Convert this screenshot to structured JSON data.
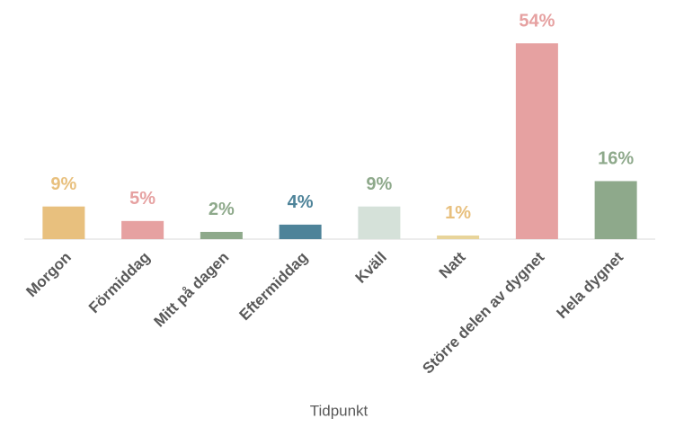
{
  "chart_data": {
    "type": "bar",
    "x_label": "Tidpunkt",
    "categories": [
      "Morgon",
      "Förmiddag",
      "Mitt på dagen",
      "Eftermiddag",
      "Kväll",
      "Natt",
      "Större delen av dygnet",
      "Hela dygnet"
    ],
    "values": [
      9,
      5,
      2,
      4,
      9,
      1,
      54,
      16
    ],
    "value_labels": [
      "9%",
      "5%",
      "2%",
      "4%",
      "9%",
      "1%",
      "54%",
      "16%"
    ],
    "colors": [
      "#e8c07e",
      "#e6a1a1",
      "#8ea98b",
      "#4e8399",
      "#d5e1d9",
      "#e8d49a",
      "#e6a1a1",
      "#8ea98b"
    ],
    "label_colors": [
      "#e8c07e",
      "#e6a1a1",
      "#8ea98b",
      "#4e8399",
      "#8ea98b",
      "#e8c07e",
      "#e6a1a1",
      "#8ea98b"
    ],
    "ylim": [
      0,
      60
    ]
  }
}
